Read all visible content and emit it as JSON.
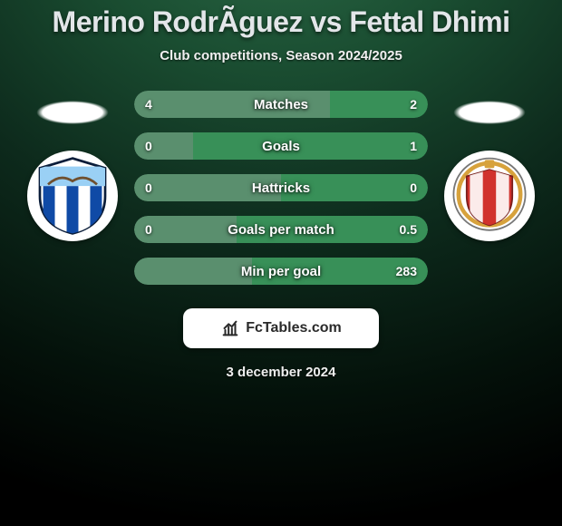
{
  "title": "Merino RodrÃ­guez vs Fettal Dhimi",
  "subtitle": "Club competitions, Season 2024/2025",
  "date": "3 december 2024",
  "brand": {
    "text_left": "Fc",
    "text_right": "Tables.com",
    "bg": "#ffffff",
    "fg": "#2a2a2a"
  },
  "colors": {
    "left_bar": "#5a8f6e",
    "right_bar": "#389058",
    "track_bg": "rgba(0,0,0,0.15)"
  },
  "left_team": {
    "crest_bg": "#ffffff",
    "stripes": [
      "#0f4aa6",
      "#ffffff",
      "#0f4aa6",
      "#ffffff",
      "#0f4aa6"
    ],
    "accent": "#9ad0f5"
  },
  "right_team": {
    "crest_bg": "#ffffff",
    "ring": "#d7a23c",
    "inner": "#d1322d",
    "stripes": [
      "#ffffff",
      "#d1322d",
      "#ffffff"
    ]
  },
  "rows": [
    {
      "label": "Matches",
      "left": "4",
      "right": "2",
      "left_pct": 66.7,
      "right_pct": 33.3
    },
    {
      "label": "Goals",
      "left": "0",
      "right": "1",
      "left_pct": 20.0,
      "right_pct": 80.0
    },
    {
      "label": "Hattricks",
      "left": "0",
      "right": "0",
      "left_pct": 50.0,
      "right_pct": 50.0
    },
    {
      "label": "Goals per match",
      "left": "0",
      "right": "0.5",
      "left_pct": 35.0,
      "right_pct": 65.0
    },
    {
      "label": "Min per goal",
      "left": "",
      "right": "283",
      "left_pct": 40.0,
      "right_pct": 60.0
    }
  ]
}
